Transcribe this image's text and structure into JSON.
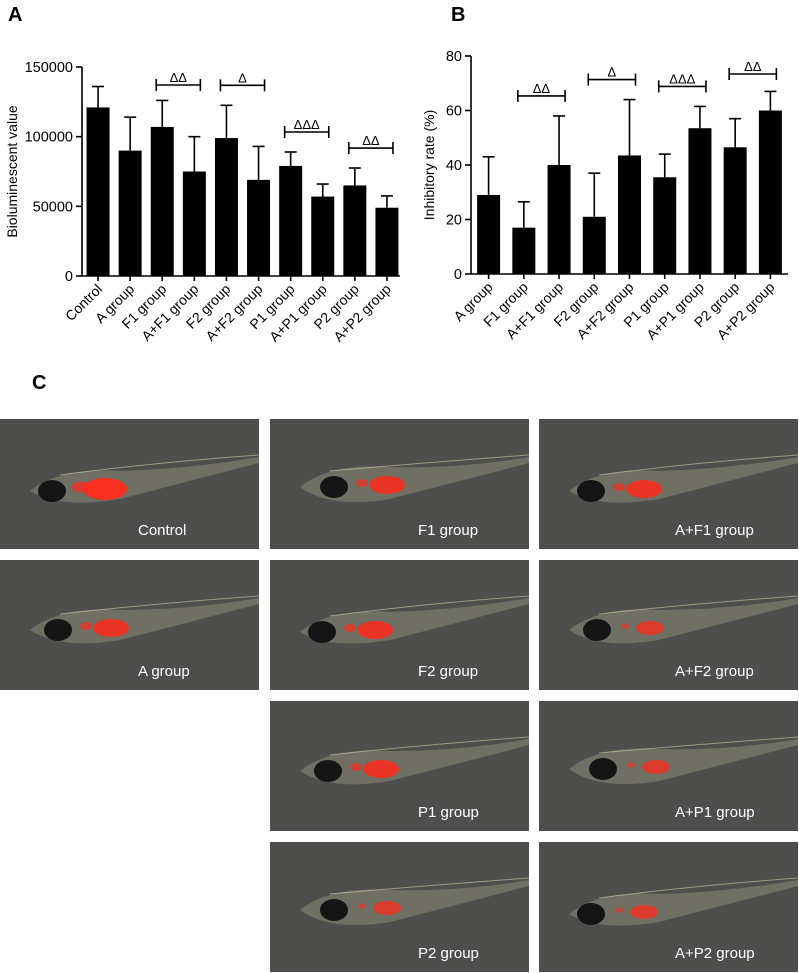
{
  "chart_data": [
    {
      "panel": "A",
      "type": "bar",
      "ylabel": "Bioluminescent value",
      "ylim": [
        0,
        150000
      ],
      "yticks": [
        "0",
        "50000",
        "100000",
        "150000"
      ],
      "categories": [
        "Control",
        "A group",
        "F1 group",
        "A+F1 group",
        "F2 group",
        "A+F2 group",
        "P1 group",
        "A+P1 group",
        "P2 group",
        "A+P2 group"
      ],
      "values": [
        121000,
        90000,
        107000,
        75000,
        99000,
        69000,
        79000,
        57000,
        65000,
        49000
      ],
      "errors": [
        15000,
        24000,
        19000,
        25000,
        23500,
        24000,
        10000,
        9000,
        12500,
        8500
      ],
      "significance": [
        {
          "from": 2,
          "to": 3,
          "label": "ΔΔ"
        },
        {
          "from": 4,
          "to": 5,
          "label": "Δ"
        },
        {
          "from": 6,
          "to": 7,
          "label": "ΔΔΔ"
        },
        {
          "from": 8,
          "to": 9,
          "label": "ΔΔ"
        }
      ],
      "grid": false
    },
    {
      "panel": "B",
      "type": "bar",
      "ylabel": "Inhibitory rate (%)",
      "ylim": [
        0,
        80
      ],
      "yticks": [
        "0",
        "20",
        "40",
        "60",
        "80"
      ],
      "categories": [
        "A group",
        "F1 group",
        "A+F1 group",
        "F2 group",
        "A+F2 group",
        "P1 group",
        "A+P1 group",
        "P2 group",
        "A+P2 group"
      ],
      "values": [
        29,
        17,
        40,
        21,
        43.5,
        35.5,
        53.5,
        46.5,
        60
      ],
      "errors": [
        14,
        9.5,
        18,
        16,
        20.5,
        8.5,
        8,
        10.5,
        7
      ],
      "significance": [
        {
          "from": 1,
          "to": 2,
          "label": "ΔΔ"
        },
        {
          "from": 3,
          "to": 4,
          "label": "Δ"
        },
        {
          "from": 5,
          "to": 6,
          "label": "ΔΔΔ"
        },
        {
          "from": 7,
          "to": 8,
          "label": "ΔΔ"
        }
      ],
      "grid": false
    }
  ],
  "panels": {
    "a": "A",
    "b": "B",
    "c": "C"
  },
  "images": [
    {
      "label": "Control",
      "fluorescence": "strong",
      "colors": {
        "signal": "#ff2a1a"
      }
    },
    {
      "label": "A group",
      "fluorescence": "moderate",
      "colors": {
        "signal": "#ff2a1a"
      }
    },
    {
      "label": "F1 group",
      "fluorescence": "moderate",
      "colors": {
        "signal": "#ff2a1a"
      }
    },
    {
      "label": "F2 group",
      "fluorescence": "moderate",
      "colors": {
        "signal": "#ff2a1a"
      }
    },
    {
      "label": "P1 group",
      "fluorescence": "moderate",
      "colors": {
        "signal": "#ff2a1a"
      }
    },
    {
      "label": "P2 group",
      "fluorescence": "weak",
      "colors": {
        "signal": "#ff2a1a"
      }
    },
    {
      "label": "A+F1 group",
      "fluorescence": "moderate",
      "colors": {
        "signal": "#ff2a1a"
      }
    },
    {
      "label": "A+F2 group",
      "fluorescence": "weak",
      "colors": {
        "signal": "#ff2a1a"
      }
    },
    {
      "label": "A+P1 group",
      "fluorescence": "weak",
      "colors": {
        "signal": "#ff2a1a"
      }
    },
    {
      "label": "A+P2 group",
      "fluorescence": "weak",
      "colors": {
        "signal": "#ff2a1a"
      }
    }
  ],
  "colors": {
    "bar": "#000000",
    "background": "#ffffff",
    "photo_bg": "#4e4e4c",
    "caption": "#ffffff"
  }
}
